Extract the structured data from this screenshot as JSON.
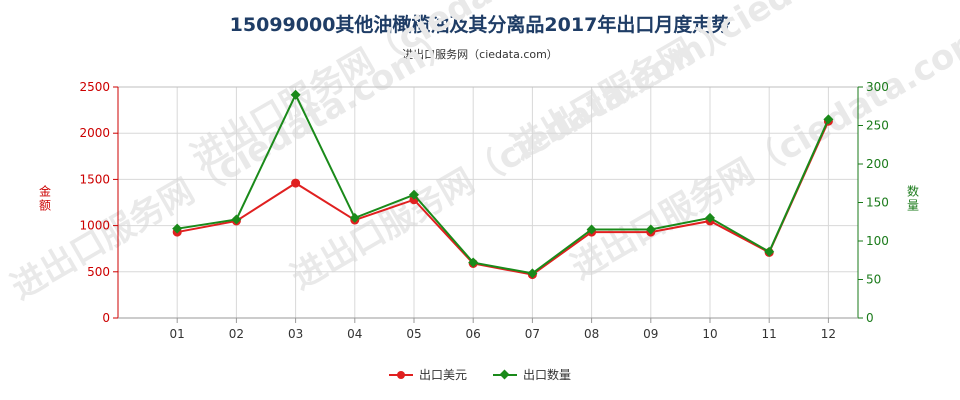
{
  "chart_data": {
    "type": "line",
    "title": "15099000其他油橄榄油及其分离品2017年出口月度走势",
    "subtitle": "进出口服务网（ciedata.com）",
    "watermark": "进出口服务网（ciedata.com）",
    "categories": [
      "01",
      "02",
      "03",
      "04",
      "05",
      "06",
      "07",
      "08",
      "09",
      "10",
      "11",
      "12"
    ],
    "y_left": {
      "label": "金额",
      "range": [
        0,
        2500
      ],
      "ticks": [
        0,
        500,
        1000,
        1500,
        2000,
        2500
      ],
      "color": "#cc0000"
    },
    "y_right": {
      "label": "数量",
      "range": [
        0,
        300
      ],
      "ticks": [
        0,
        50,
        100,
        150,
        200,
        250,
        300
      ],
      "color": "#1a7a1a"
    },
    "series": [
      {
        "name": "出口美元",
        "axis": "left",
        "color": "#e02020",
        "marker": "circle",
        "values": [
          930,
          1050,
          1460,
          1060,
          1280,
          590,
          470,
          930,
          930,
          1050,
          710,
          2130
        ]
      },
      {
        "name": "出口数量",
        "axis": "right",
        "color": "#1a8a1a",
        "marker": "diamond",
        "values": [
          116,
          128,
          290,
          130,
          160,
          72,
          58,
          115,
          115,
          130,
          86,
          258
        ]
      }
    ],
    "grid": true,
    "legend_position": "bottom"
  }
}
